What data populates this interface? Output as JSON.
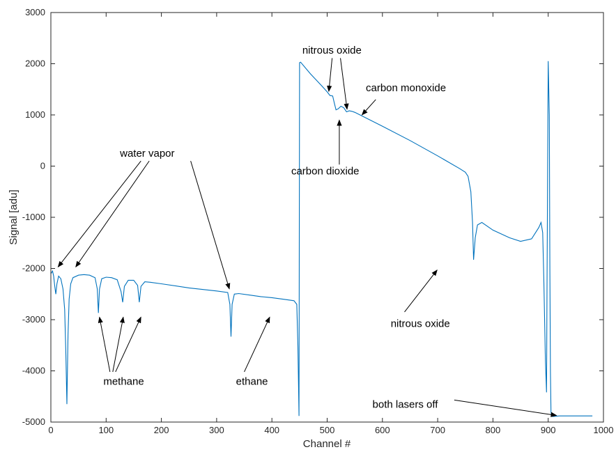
{
  "chart_data": {
    "type": "line",
    "xlabel": "Channel #",
    "ylabel": "Signal [adu]",
    "xlim": [
      0,
      1000
    ],
    "ylim": [
      -5000,
      3000
    ],
    "xticks": [
      0,
      100,
      200,
      300,
      400,
      500,
      600,
      700,
      800,
      900,
      1000
    ],
    "yticks": [
      -5000,
      -4000,
      -3000,
      -2000,
      -1000,
      0,
      1000,
      2000,
      3000
    ],
    "grid": false,
    "line_color": "#0072BD",
    "series": [
      {
        "x": [
          0,
          3,
          5,
          7,
          9,
          11,
          14,
          18,
          22,
          25,
          27,
          29,
          31,
          33,
          36,
          40,
          50,
          60,
          70,
          80,
          84,
          86,
          88,
          92,
          100,
          110,
          120,
          127,
          130,
          133,
          140,
          150,
          157,
          160,
          163,
          170,
          180,
          200,
          250,
          300,
          320,
          324,
          326,
          328,
          332,
          340,
          360,
          380,
          400,
          420,
          440,
          445,
          447,
          449,
          450,
          452,
          470,
          490,
          500,
          505,
          510,
          513,
          516,
          520,
          525,
          530,
          535,
          540,
          545,
          550,
          600,
          650,
          700,
          740,
          750,
          755,
          760,
          763,
          765,
          768,
          772,
          780,
          800,
          830,
          850,
          870,
          883,
          887,
          890,
          892,
          895,
          897,
          898,
          900,
          902,
          903,
          904,
          905,
          906,
          907,
          910,
          920,
          940,
          960,
          980
        ],
        "values": [
          -2100,
          -2050,
          -2150,
          -2350,
          -2500,
          -2300,
          -2150,
          -2200,
          -2400,
          -2800,
          -3600,
          -4650,
          -3300,
          -2600,
          -2300,
          -2180,
          -2130,
          -2120,
          -2130,
          -2180,
          -2400,
          -2870,
          -2400,
          -2200,
          -2170,
          -2180,
          -2220,
          -2450,
          -2660,
          -2350,
          -2230,
          -2230,
          -2330,
          -2660,
          -2350,
          -2260,
          -2270,
          -2300,
          -2380,
          -2440,
          -2470,
          -2700,
          -3330,
          -2700,
          -2500,
          -2490,
          -2520,
          -2550,
          -2570,
          -2600,
          -2630,
          -2700,
          -3500,
          -4880,
          2020,
          2030,
          1800,
          1570,
          1450,
          1380,
          1370,
          1230,
          1100,
          1120,
          1170,
          1140,
          1060,
          1080,
          1070,
          1050,
          780,
          500,
          200,
          -50,
          -120,
          -200,
          -500,
          -1100,
          -1830,
          -1400,
          -1150,
          -1100,
          -1250,
          -1400,
          -1470,
          -1420,
          -1200,
          -1100,
          -1300,
          -2200,
          -3800,
          -4420,
          -2100,
          2050,
          1000,
          -2000,
          -4000,
          -4800,
          -4880,
          -4890,
          -4890,
          -4880,
          -4880,
          -4880,
          -4880
        ]
      }
    ],
    "annotations": [
      {
        "text": "water vapor",
        "x": 125,
        "y": 185
      },
      {
        "text": "methane",
        "x": 95,
        "y": -4270
      },
      {
        "text": "ethane",
        "x": 335,
        "y": -4270
      },
      {
        "text": "nitrous oxide",
        "x": 455,
        "y": 2200
      },
      {
        "text": "carbon monoxide",
        "x": 570,
        "y": 1460
      },
      {
        "text": "carbon dioxide",
        "x": 435,
        "y": -160
      },
      {
        "text": "nitrous oxide",
        "x": 615,
        "y": -3140
      },
      {
        "text": "both lasers off",
        "x": 582,
        "y": -4720
      }
    ],
    "arrows": [
      {
        "from": [
          163,
          100
        ],
        "to": [
          13,
          -1970
        ]
      },
      {
        "from": [
          178,
          100
        ],
        "to": [
          45,
          -1970
        ]
      },
      {
        "from": [
          253,
          100
        ],
        "to": [
          323,
          -2400
        ]
      },
      {
        "from": [
          107,
          -4020
        ],
        "to": [
          88,
          -2950
        ]
      },
      {
        "from": [
          112,
          -4020
        ],
        "to": [
          131,
          -2950
        ]
      },
      {
        "from": [
          117,
          -4020
        ],
        "to": [
          163,
          -2950
        ]
      },
      {
        "from": [
          350,
          -4020
        ],
        "to": [
          396,
          -2950
        ]
      },
      {
        "from": [
          509,
          2110
        ],
        "to": [
          503,
          1460
        ]
      },
      {
        "from": [
          524,
          2110
        ],
        "to": [
          536,
          1110
        ]
      },
      {
        "from": [
          588,
          1300
        ],
        "to": [
          563,
          1000
        ]
      },
      {
        "from": [
          522,
          30
        ],
        "to": [
          522,
          900
        ]
      },
      {
        "from": [
          640,
          -2850
        ],
        "to": [
          699,
          -2030
        ]
      },
      {
        "from": [
          730,
          -4570
        ],
        "to": [
          915,
          -4870
        ]
      }
    ]
  }
}
